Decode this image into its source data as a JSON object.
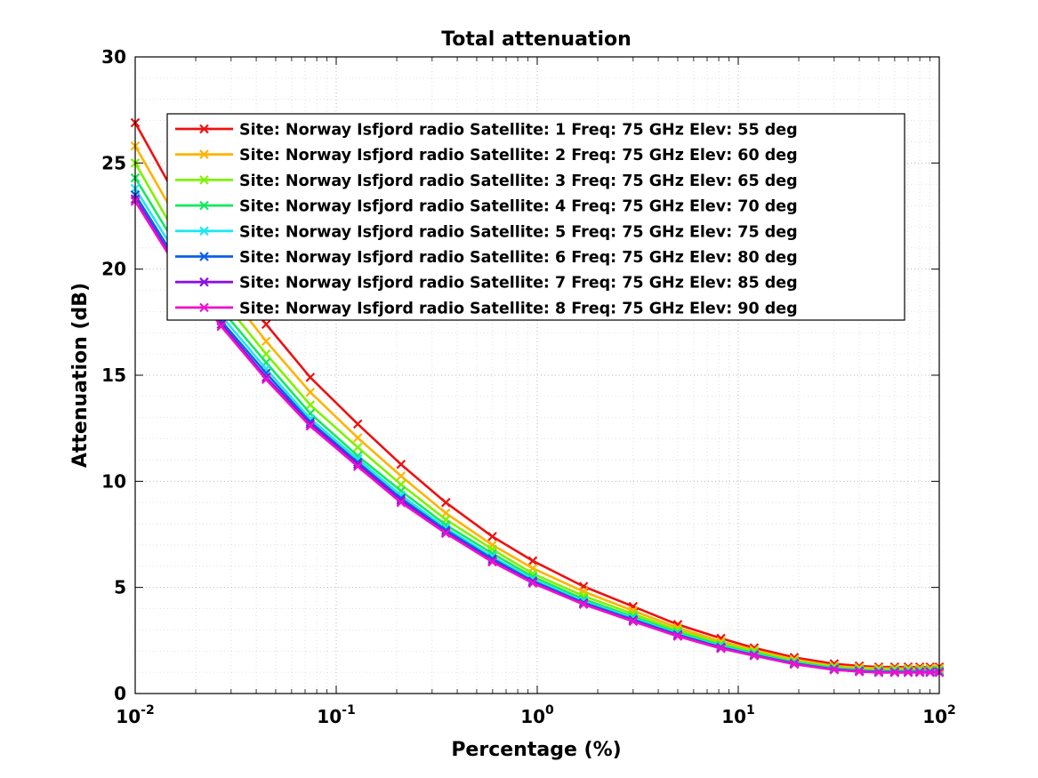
{
  "chart_data": {
    "type": "line",
    "title": "Total attenuation",
    "xlabel": "Percentage (%)",
    "ylabel": "Attenuation (dB)",
    "xscale": "log",
    "xlim": [
      0.01,
      100
    ],
    "ylim": [
      0,
      30
    ],
    "xticks": [
      {
        "base": "10",
        "exp": "-2"
      },
      {
        "base": "10",
        "exp": "-1"
      },
      {
        "base": "10",
        "exp": "0"
      },
      {
        "base": "10",
        "exp": "1"
      },
      {
        "base": "10",
        "exp": "2"
      }
    ],
    "yticks": [
      "0",
      "5",
      "10",
      "15",
      "20",
      "25",
      "30"
    ],
    "grid": "dotted, major and minor",
    "legend_position": "top-right",
    "marker": "x",
    "x": [
      0.01,
      0.0158,
      0.0268,
      0.0448,
      0.0743,
      0.128,
      0.21,
      0.351,
      0.598,
      0.95,
      1.7,
      3.0,
      5.0,
      8.2,
      12.0,
      19.0,
      30.0,
      40.0,
      50.0,
      60.0,
      70.0,
      80.0,
      90.0,
      100.0
    ],
    "series": [
      {
        "name": "Site: Norway Isfjord radio Satellite: 1 Freq: 75 GHz Elev: 55 deg",
        "color": "#ee1111",
        "values": [
          26.9,
          23.5,
          20.2,
          17.4,
          14.9,
          12.7,
          10.8,
          9.0,
          7.4,
          6.25,
          5.05,
          4.1,
          3.25,
          2.6,
          2.15,
          1.7,
          1.4,
          1.3,
          1.25,
          1.25,
          1.25,
          1.25,
          1.25,
          1.25
        ]
      },
      {
        "name": "Site: Norway Isfjord radio Satellite: 2 Freq: 75 GHz Elev: 60 deg",
        "color": "#ffb300",
        "values": [
          25.8,
          22.5,
          19.3,
          16.6,
          14.2,
          12.05,
          10.25,
          8.5,
          7.0,
          5.9,
          4.8,
          3.9,
          3.1,
          2.45,
          2.05,
          1.6,
          1.3,
          1.22,
          1.18,
          1.18,
          1.18,
          1.18,
          1.18,
          1.18
        ]
      },
      {
        "name": "Site: Norway Isfjord radio Satellite: 3 Freq: 75 GHz Elev: 65 deg",
        "color": "#7ff200",
        "values": [
          25.0,
          21.7,
          18.6,
          16.0,
          13.6,
          11.6,
          9.85,
          8.2,
          6.8,
          5.65,
          4.6,
          3.75,
          2.98,
          2.35,
          1.98,
          1.52,
          1.25,
          1.15,
          1.12,
          1.12,
          1.12,
          1.12,
          1.12,
          1.12
        ]
      },
      {
        "name": "Site: Norway Isfjord radio Satellite: 4 Freq: 75 GHz Elev: 70 deg",
        "color": "#14e860",
        "values": [
          24.3,
          21.2,
          18.1,
          15.6,
          13.2,
          11.2,
          9.55,
          7.95,
          6.6,
          5.5,
          4.45,
          3.62,
          2.88,
          2.28,
          1.9,
          1.48,
          1.2,
          1.1,
          1.07,
          1.07,
          1.07,
          1.07,
          1.07,
          1.07
        ]
      },
      {
        "name": "Site: Norway Isfjord radio Satellite: 5 Freq: 75 GHz Elev: 75 deg",
        "color": "#1fe6f0",
        "values": [
          23.8,
          20.8,
          17.8,
          15.3,
          12.95,
          11.05,
          9.35,
          7.8,
          6.45,
          5.38,
          4.35,
          3.55,
          2.82,
          2.22,
          1.85,
          1.44,
          1.17,
          1.08,
          1.04,
          1.04,
          1.04,
          1.04,
          1.04,
          1.04
        ]
      },
      {
        "name": "Site: Norway Isfjord radio Satellite: 6 Freq: 75 GHz Elev: 80 deg",
        "color": "#0b5ee6",
        "values": [
          23.5,
          20.5,
          17.55,
          15.1,
          12.8,
          10.9,
          9.2,
          7.7,
          6.35,
          5.3,
          4.28,
          3.48,
          2.77,
          2.18,
          1.82,
          1.42,
          1.15,
          1.06,
          1.02,
          1.02,
          1.02,
          1.02,
          1.02,
          1.02
        ]
      },
      {
        "name": "Site: Norway Isfjord radio Satellite: 7 Freq: 75 GHz Elev: 85 deg",
        "color": "#8a10e0",
        "values": [
          23.3,
          20.3,
          17.4,
          14.9,
          12.7,
          10.8,
          9.1,
          7.6,
          6.25,
          5.25,
          4.23,
          3.43,
          2.73,
          2.15,
          1.8,
          1.4,
          1.13,
          1.04,
          1.0,
          1.0,
          1.0,
          1.0,
          1.0,
          1.0
        ]
      },
      {
        "name": "Site: Norway Isfjord radio Satellite: 8 Freq: 75 GHz Elev: 90 deg",
        "color": "#ee11cc",
        "values": [
          23.2,
          20.2,
          17.3,
          14.8,
          12.6,
          10.7,
          9.0,
          7.55,
          6.2,
          5.2,
          4.2,
          3.4,
          2.7,
          2.12,
          1.78,
          1.38,
          1.12,
          1.03,
          0.99,
          0.99,
          0.99,
          0.99,
          0.99,
          0.99
        ]
      }
    ]
  }
}
